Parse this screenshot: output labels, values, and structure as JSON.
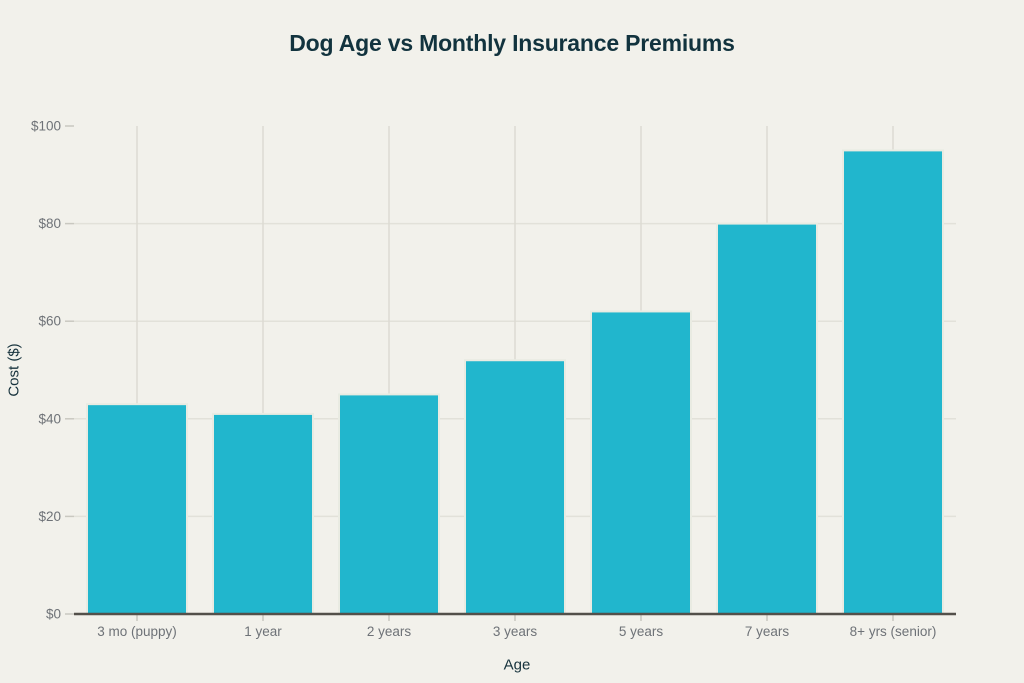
{
  "chart_data": {
    "type": "bar",
    "title": "Dog Age vs Monthly Insurance Premiums",
    "xlabel": "Age",
    "ylabel": "Cost ($)",
    "categories": [
      "3 mo (puppy)",
      "1 year",
      "2 years",
      "3 years",
      "5 years",
      "7 years",
      "8+ yrs (senior)"
    ],
    "values": [
      43,
      41,
      45,
      52,
      62,
      80,
      95
    ],
    "ylim": [
      0,
      100
    ],
    "y_ticks": [
      {
        "value": 0,
        "label": "$0"
      },
      {
        "value": 20,
        "label": "$20"
      },
      {
        "value": 40,
        "label": "$40"
      },
      {
        "value": 60,
        "label": "$60"
      },
      {
        "value": 80,
        "label": "$80"
      },
      {
        "value": 100,
        "label": "$100"
      }
    ],
    "grid": true,
    "legend": "none",
    "colors": {
      "background": "#f2f1eb",
      "bar_fill": "#21b6cd",
      "bar_stroke": "#e9ebe2",
      "grid_vertical": "#dcdbd3",
      "grid_horizontal": "#e2e1d9",
      "axis_line": "#53504a",
      "tick_mark": "#c9c8c0",
      "tick_label": "#6e7277",
      "title_text": "#12333e",
      "axis_title_text": "#16323c"
    }
  }
}
